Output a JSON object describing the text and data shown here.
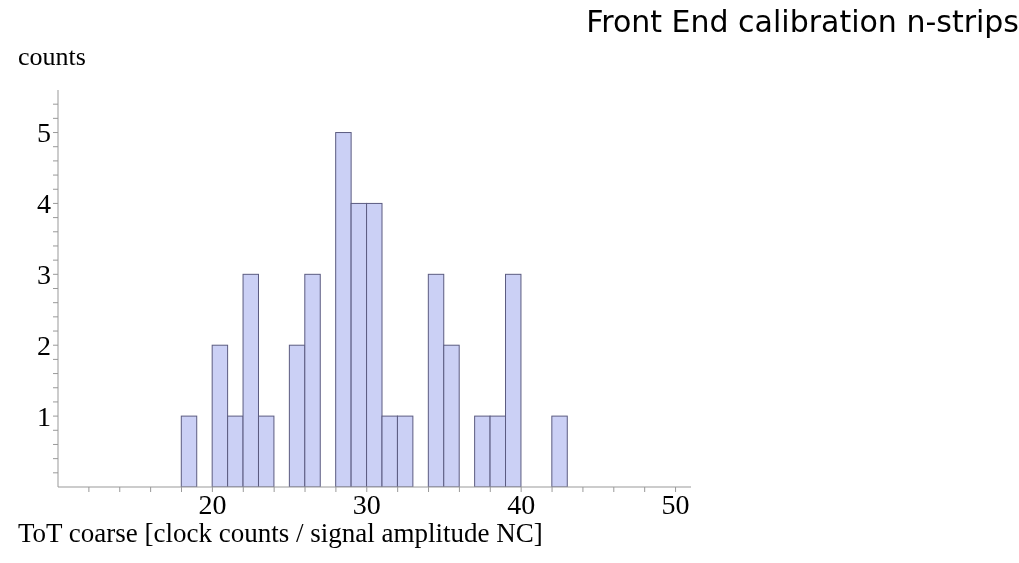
{
  "chart_data": {
    "type": "histogram",
    "title": "Front End calibration n-strips",
    "xlabel": "ToT coarse [clock counts / signal amplitude NC]",
    "ylabel": "counts",
    "bins": [
      18,
      19,
      20,
      21,
      22,
      23,
      24,
      25,
      26,
      27,
      28,
      29,
      30,
      31,
      32,
      33,
      34,
      35,
      36,
      37,
      38,
      39,
      40,
      41,
      42,
      43
    ],
    "values": [
      1,
      0,
      2,
      1,
      3,
      1,
      0,
      2,
      3,
      0,
      5,
      4,
      4,
      1,
      1,
      0,
      3,
      2,
      0,
      1,
      1,
      3,
      0,
      0,
      1
    ],
    "color": "#cbd0f5",
    "xlim": [
      10,
      51
    ],
    "xticks": [
      {
        "value": 12,
        "label": null
      },
      {
        "value": 14,
        "label": null
      },
      {
        "value": 16,
        "label": null
      },
      {
        "value": 18,
        "label": null
      },
      20,
      {
        "value": 22,
        "label": null
      },
      {
        "value": 24,
        "label": null
      },
      {
        "value": 26,
        "label": null
      },
      {
        "value": 28,
        "label": null
      },
      30,
      {
        "value": 32,
        "label": null
      },
      {
        "value": 34,
        "label": null
      },
      {
        "value": 36,
        "label": null
      },
      {
        "value": 38,
        "label": null
      },
      40,
      {
        "value": 42,
        "label": null
      },
      {
        "value": 44,
        "label": null
      },
      {
        "value": 46,
        "label": null
      },
      {
        "value": 48,
        "label": null
      },
      50
    ],
    "ylim": [
      0,
      5.6
    ],
    "yticks": [
      {
        "value": 0.2,
        "label": null
      },
      {
        "value": 0.4,
        "label": null
      },
      {
        "value": 0.6,
        "label": null
      },
      {
        "value": 0.8,
        "label": null
      },
      1,
      {
        "value": 1.2,
        "label": null
      },
      {
        "value": 1.4,
        "label": null
      },
      {
        "value": 1.6,
        "label": null
      },
      {
        "value": 1.8,
        "label": null
      },
      2,
      {
        "value": 2.2,
        "label": null
      },
      {
        "value": 2.4,
        "label": null
      },
      {
        "value": 2.6,
        "label": null
      },
      {
        "value": 2.8,
        "label": null
      },
      3,
      {
        "value": 3.2,
        "label": null
      },
      {
        "value": 3.4,
        "label": null
      },
      {
        "value": 3.6,
        "label": null
      },
      {
        "value": 3.8,
        "label": null
      },
      4,
      {
        "value": 4.2,
        "label": null
      },
      {
        "value": 4.4,
        "label": null
      },
      {
        "value": 4.6,
        "label": null
      },
      {
        "value": 4.8,
        "label": null
      },
      5,
      {
        "value": 5.2,
        "label": null
      },
      {
        "value": 5.4,
        "label": null
      }
    ]
  }
}
